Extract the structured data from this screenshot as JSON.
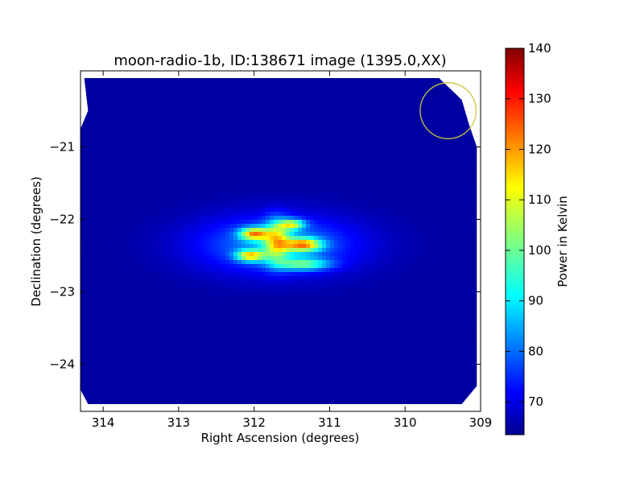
{
  "chart_data": {
    "type": "heatmap",
    "title": "moon-radio-1b, ID:138671 image (1395.0,XX)",
    "xlabel": "Right Ascension (degrees)",
    "ylabel": "Declination (degrees)",
    "xlim": [
      314.3,
      309.0
    ],
    "ylim": [
      -24.65,
      -19.95
    ],
    "x_ticks": [
      314,
      313,
      312,
      311,
      310,
      309
    ],
    "y_ticks": [
      -21,
      -22,
      -23,
      -24
    ],
    "colorbar": {
      "label": "Power in Kelvin",
      "range": [
        63.5,
        140
      ],
      "ticks": [
        70,
        80,
        90,
        100,
        110,
        120,
        130,
        140
      ],
      "colormap": "jet"
    },
    "background_level": 66,
    "blobs": [
      {
        "ra": 312.0,
        "dec": -22.2,
        "peak": 140,
        "sigma_ra": 0.13,
        "sigma_dec": 0.06
      },
      {
        "ra": 311.35,
        "dec": -22.35,
        "peak": 140,
        "sigma_ra": 0.17,
        "sigma_dec": 0.065
      },
      {
        "ra": 312.05,
        "dec": -22.5,
        "peak": 133,
        "sigma_ra": 0.13,
        "sigma_dec": 0.055
      },
      {
        "ra": 311.5,
        "dec": -22.07,
        "peak": 124,
        "sigma_ra": 0.12,
        "sigma_dec": 0.05
      },
      {
        "ra": 311.7,
        "dec": -22.3,
        "peak": 122,
        "sigma_ra": 0.12,
        "sigma_dec": 0.2
      },
      {
        "ra": 311.35,
        "dec": -22.62,
        "peak": 112,
        "sigma_ra": 0.25,
        "sigma_dec": 0.06
      },
      {
        "ra": 311.7,
        "dec": -22.35,
        "peak": 100,
        "sigma_ra": 0.75,
        "sigma_dec": 0.28
      }
    ],
    "beam_circle": {
      "ra": 309.43,
      "dec": -20.5,
      "radius_deg": 0.37,
      "color": "#c8c83a"
    }
  }
}
